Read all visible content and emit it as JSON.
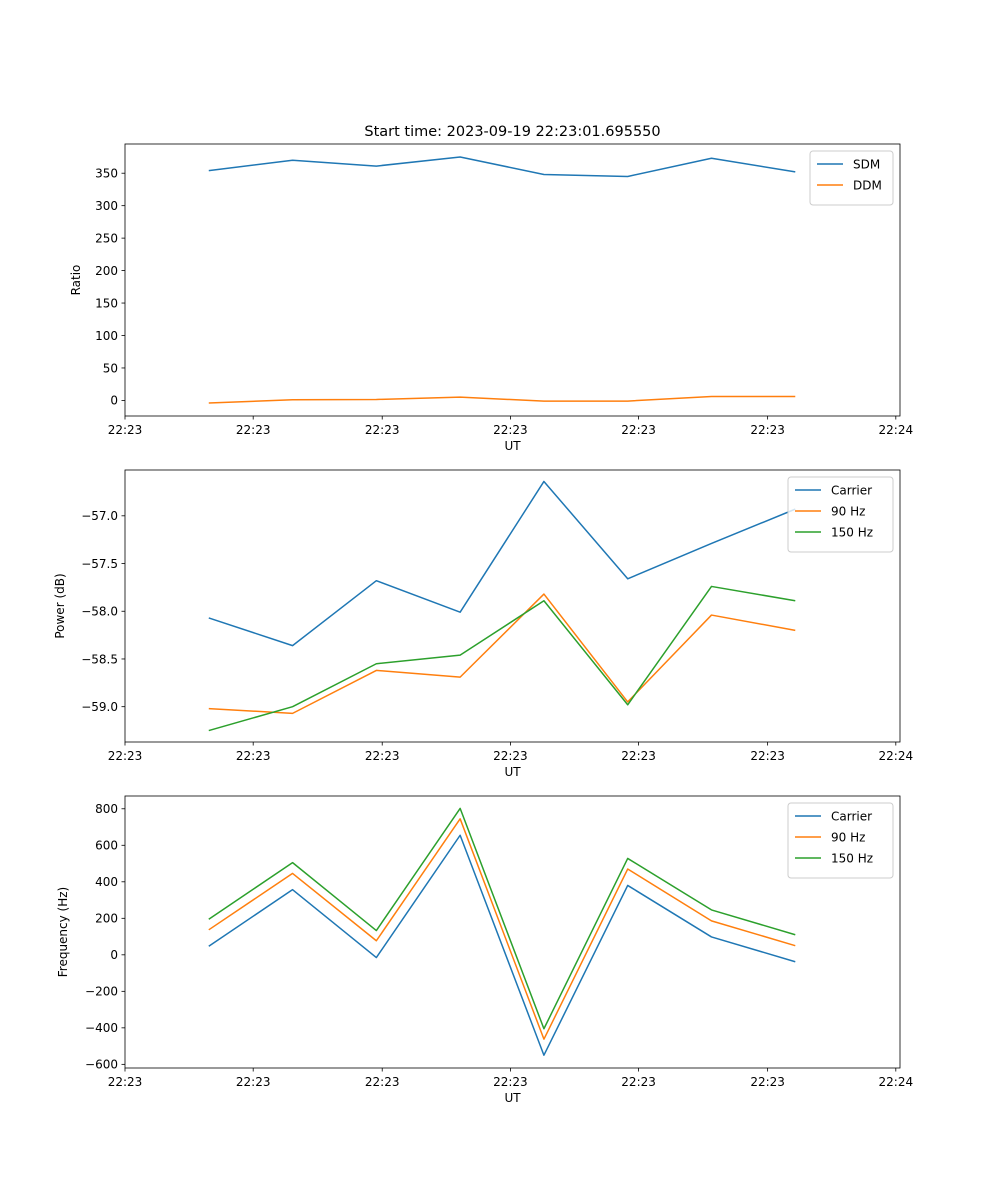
{
  "figure_title": "Start time: 2023-09-19 22:23:01.695550",
  "colors": {
    "blue": "#1f77b4",
    "orange": "#ff7f0e",
    "green": "#2ca02c"
  },
  "chart_data": [
    {
      "type": "line",
      "title": "Start time: 2023-09-19 22:23:01.695550",
      "xlabel": "UT",
      "ylabel": "Ratio",
      "x": [
        1,
        2,
        3,
        4,
        5,
        6,
        7,
        8
      ],
      "xlim": [
        0,
        9.25
      ],
      "xticks": [
        0,
        1.53,
        3.07,
        4.6,
        6.13,
        7.67,
        9.2
      ],
      "xtick_labels": [
        "22:23",
        "22:23",
        "22:23",
        "22:23",
        "22:23",
        "22:23",
        "22:24"
      ],
      "ylim": [
        -24,
        395
      ],
      "yticks": [
        0,
        50,
        100,
        150,
        200,
        250,
        300,
        350
      ],
      "ytick_labels": [
        "0",
        "50",
        "100",
        "150",
        "200",
        "250",
        "300",
        "350"
      ],
      "legend_position": "top-right",
      "series": [
        {
          "name": "SDM",
          "color": "#1f77b4",
          "values": [
            354,
            370,
            361,
            375,
            348,
            345,
            373,
            352
          ]
        },
        {
          "name": "DDM",
          "color": "#ff7f0e",
          "values": [
            -4,
            1,
            1.5,
            5,
            -1,
            -1,
            6,
            6
          ]
        }
      ]
    },
    {
      "type": "line",
      "title": "",
      "xlabel": "UT",
      "ylabel": "Power (dB)",
      "x": [
        1,
        2,
        3,
        4,
        5,
        6,
        7,
        8
      ],
      "xlim": [
        0,
        9.25
      ],
      "xticks": [
        0,
        1.53,
        3.07,
        4.6,
        6.13,
        7.67,
        9.2
      ],
      "xtick_labels": [
        "22:23",
        "22:23",
        "22:23",
        "22:23",
        "22:23",
        "22:23",
        "22:24"
      ],
      "ylim": [
        -59.37,
        -56.52
      ],
      "yticks": [
        -59.0,
        -58.5,
        -58.0,
        -57.5,
        -57.0
      ],
      "ytick_labels": [
        "−59.0",
        "−58.5",
        "−58.0",
        "−57.5",
        "−57.0"
      ],
      "legend_position": "top-right",
      "series": [
        {
          "name": "Carrier",
          "color": "#1f77b4",
          "values": [
            -58.07,
            -58.36,
            -57.68,
            -58.01,
            -56.64,
            -57.66,
            -57.29,
            -56.93
          ]
        },
        {
          "name": "90 Hz",
          "color": "#ff7f0e",
          "values": [
            -59.02,
            -59.07,
            -58.62,
            -58.69,
            -57.82,
            -58.95,
            -58.04,
            -58.2
          ]
        },
        {
          "name": "150 Hz",
          "color": "#2ca02c",
          "values": [
            -59.25,
            -59.0,
            -58.55,
            -58.46,
            -57.89,
            -58.98,
            -57.74,
            -57.89
          ]
        }
      ]
    },
    {
      "type": "line",
      "title": "",
      "xlabel": "UT",
      "ylabel": "Frequency (Hz)",
      "x": [
        1,
        2,
        3,
        4,
        5,
        6,
        7,
        8
      ],
      "xlim": [
        0,
        9.25
      ],
      "xticks": [
        0,
        1.53,
        3.07,
        4.6,
        6.13,
        7.67,
        9.2
      ],
      "xtick_labels": [
        "22:23",
        "22:23",
        "22:23",
        "22:23",
        "22:23",
        "22:23",
        "22:24"
      ],
      "ylim": [
        -620,
        870
      ],
      "yticks": [
        -600,
        -400,
        -200,
        0,
        200,
        400,
        600,
        800
      ],
      "ytick_labels": [
        "−600",
        "−400",
        "−200",
        "0",
        "200",
        "400",
        "600",
        "800"
      ],
      "legend_position": "top-right",
      "series": [
        {
          "name": "Carrier",
          "color": "#1f77b4",
          "values": [
            47,
            357,
            -15,
            655,
            -550,
            380,
            98,
            -38
          ]
        },
        {
          "name": "90 Hz",
          "color": "#ff7f0e",
          "values": [
            137,
            446,
            77,
            745,
            -462,
            470,
            186,
            50
          ]
        },
        {
          "name": "150 Hz",
          "color": "#2ca02c",
          "values": [
            195,
            505,
            133,
            802,
            -405,
            528,
            246,
            110
          ]
        }
      ]
    }
  ]
}
